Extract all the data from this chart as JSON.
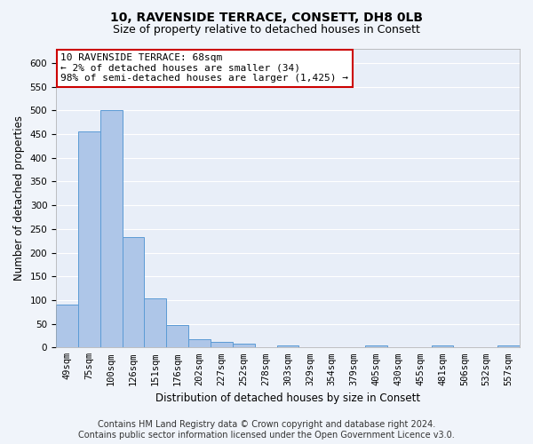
{
  "title_line1": "10, RAVENSIDE TERRACE, CONSETT, DH8 0LB",
  "title_line2": "Size of property relative to detached houses in Consett",
  "xlabel": "Distribution of detached houses by size in Consett",
  "ylabel": "Number of detached properties",
  "bar_color": "#aec6e8",
  "bar_edge_color": "#5b9bd5",
  "categories": [
    "49sqm",
    "75sqm",
    "100sqm",
    "126sqm",
    "151sqm",
    "176sqm",
    "202sqm",
    "227sqm",
    "252sqm",
    "278sqm",
    "303sqm",
    "329sqm",
    "354sqm",
    "379sqm",
    "405sqm",
    "430sqm",
    "455sqm",
    "481sqm",
    "506sqm",
    "532sqm",
    "557sqm"
  ],
  "values": [
    90,
    455,
    500,
    233,
    103,
    47,
    18,
    12,
    8,
    0,
    5,
    0,
    0,
    0,
    5,
    0,
    0,
    5,
    0,
    0,
    5
  ],
  "ylim": [
    0,
    630
  ],
  "yticks": [
    0,
    50,
    100,
    150,
    200,
    250,
    300,
    350,
    400,
    450,
    500,
    550,
    600
  ],
  "annotation_text": "10 RAVENSIDE TERRACE: 68sqm\n← 2% of detached houses are smaller (34)\n98% of semi-detached houses are larger (1,425) →",
  "annotation_box_color": "#ffffff",
  "annotation_border_color": "#cc0000",
  "footer_line1": "Contains HM Land Registry data © Crown copyright and database right 2024.",
  "footer_line2": "Contains public sector information licensed under the Open Government Licence v3.0.",
  "bg_color": "#f0f4fa",
  "plot_bg_color": "#e8eef8",
  "grid_color": "#ffffff",
  "title_fontsize": 10,
  "subtitle_fontsize": 9,
  "axis_label_fontsize": 8.5,
  "tick_fontsize": 7.5,
  "annotation_fontsize": 8,
  "footer_fontsize": 7
}
